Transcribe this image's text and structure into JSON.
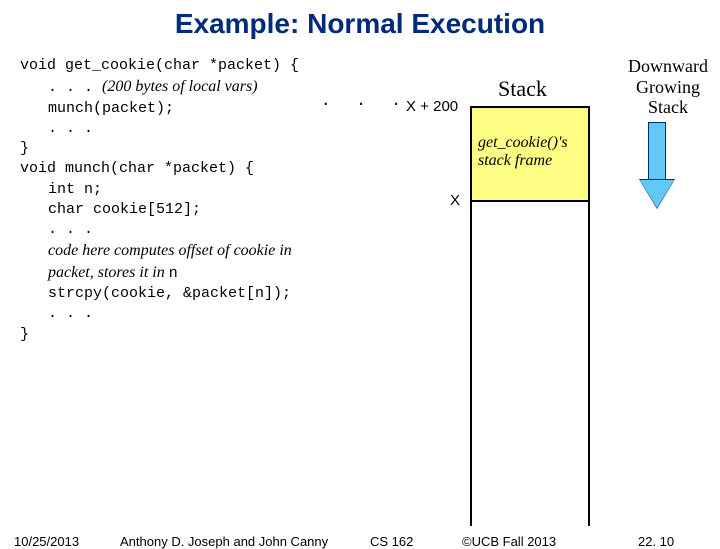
{
  "title": "Example: Normal Execution",
  "title_color": "#002a7a",
  "code": {
    "l1": "void get_cookie(char *packet) {",
    "l2a": ". . . ",
    "l2b": "(200 bytes of local vars)",
    "l2c": ". . .",
    "l3": "munch(packet);",
    "l4": ". . .",
    "l5": "}",
    "l6": "void munch(char *packet) {",
    "l7": "int n;",
    "l8": "char cookie[512];",
    "l9": ". . .",
    "l10a": "code here computes offset of cookie in",
    "l10b": "packet, stores it in ",
    "l10c": "n",
    "l11": "strcpy(cookie, &packet[n]);",
    "l12": ". . .",
    "l13": "}"
  },
  "stack": {
    "title": "Stack",
    "xplus": "X + 200",
    "x": "X",
    "frame_label_l1": "get_cookie()'s",
    "frame_label_l2": "stack frame",
    "frame_fill": "#fcfd82",
    "border_color": "#000000"
  },
  "downward": {
    "l1": "Downward",
    "l2": "Growing",
    "l3": "Stack",
    "arrow_fill": "#62c9f5",
    "arrow_border": "#002a7a"
  },
  "footer": {
    "date": "10/25/2013",
    "authors": "Anthony D. Joseph and John Canny",
    "course": "CS 162",
    "copyright": "©UCB Fall 2013",
    "page": "22. 10"
  }
}
